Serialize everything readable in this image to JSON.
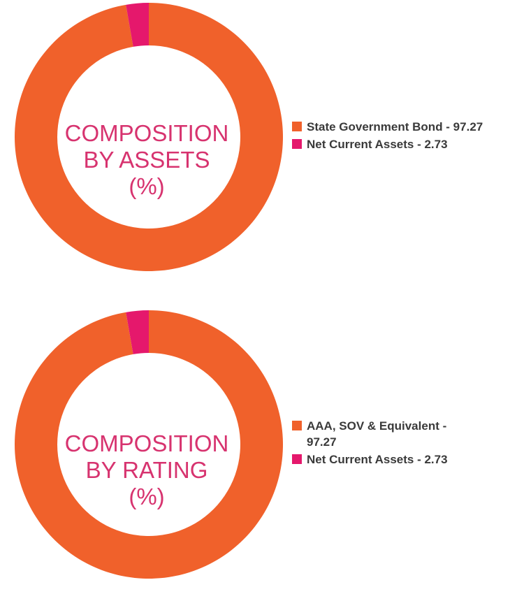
{
  "colors": {
    "primary": "#f0612b",
    "secondary": "#e5186c",
    "center_text": "#d7336f"
  },
  "chart_data": [
    {
      "type": "pie",
      "variant": "donut",
      "title_lines": [
        "COMPOSITION",
        "BY ASSETS",
        "(%)"
      ],
      "categories": [
        "State Government Bond",
        "Net Current Assets"
      ],
      "values": [
        97.27,
        2.73
      ],
      "legend_labels": [
        "State Government Bond - 97.27",
        "Net Current Assets - 2.73"
      ],
      "legend_position": "right"
    },
    {
      "type": "pie",
      "variant": "donut",
      "title_lines": [
        "COMPOSITION",
        "BY RATING",
        "(%)"
      ],
      "categories": [
        "AAA, SOV & Equivalent",
        "Net Current Assets"
      ],
      "values": [
        97.27,
        2.73
      ],
      "legend_labels": [
        "AAA, SOV & Equivalent - 97.27",
        "Net Current Assets - 2.73"
      ],
      "legend_position": "right"
    }
  ]
}
